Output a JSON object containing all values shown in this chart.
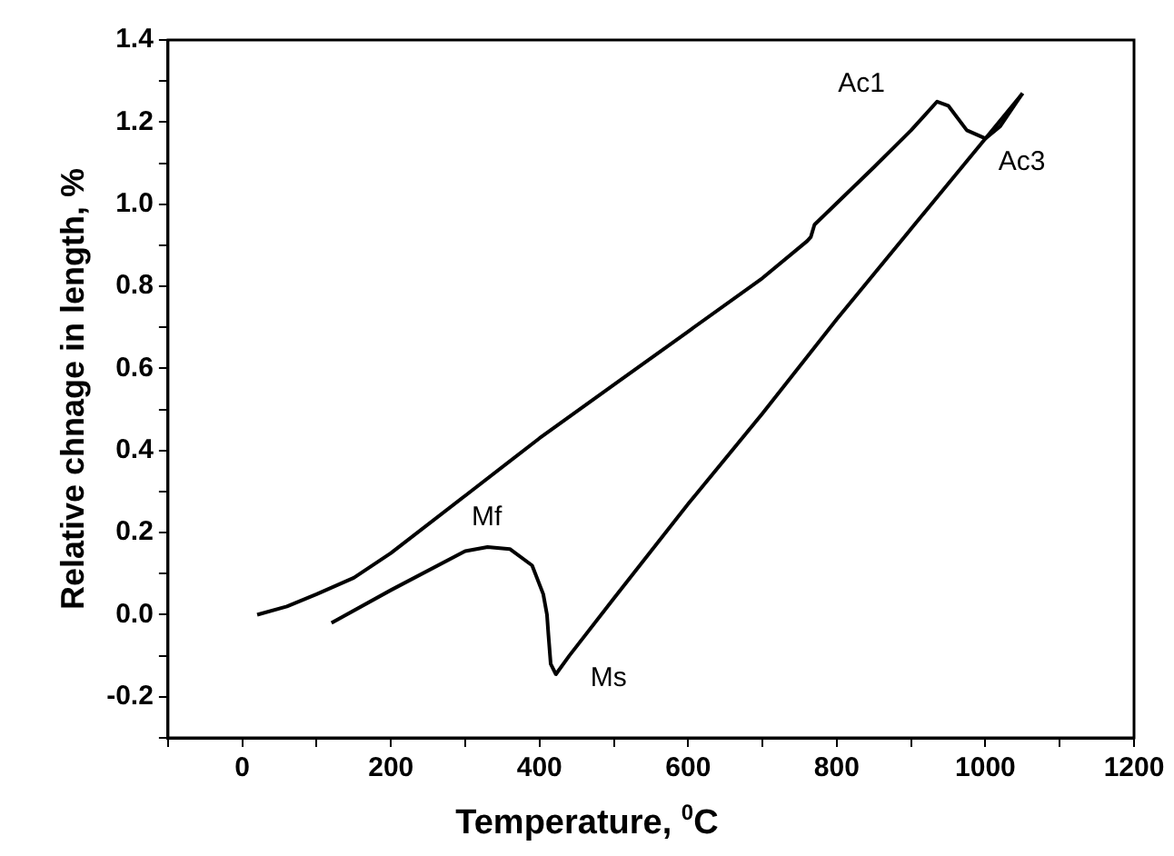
{
  "chart_data": {
    "type": "line",
    "xlabel": "Temperature, $^{0}$C",
    "ylabel": "Relative chnage in length, %",
    "series": [
      {
        "color": "#000000",
        "x": [
          20,
          60,
          100,
          150,
          200,
          300,
          400,
          500,
          600,
          700,
          760,
          765,
          770,
          850,
          900,
          935,
          950,
          975,
          1000,
          1020,
          1050
        ],
        "values": [
          0,
          0.02,
          0.05,
          0.09,
          0.15,
          0.29,
          0.43,
          0.56,
          0.69,
          0.82,
          0.91,
          0.92,
          0.95,
          1.09,
          1.18,
          1.25,
          1.24,
          1.18,
          1.16,
          1.19,
          1.27
        ]
      },
      {
        "color": "#000000",
        "x": [
          1050,
          1000,
          900,
          800,
          700,
          600,
          500,
          440,
          422,
          415,
          412,
          410,
          405,
          390,
          360,
          330,
          300,
          200,
          120
        ],
        "values": [
          1.27,
          1.16,
          0.94,
          0.72,
          0.49,
          0.27,
          0.04,
          -0.1,
          -0.145,
          -0.12,
          -0.05,
          0,
          0.05,
          0.12,
          0.16,
          0.165,
          0.155,
          0.06,
          -0.02
        ]
      }
    ],
    "xlim": [
      -100,
      1200
    ],
    "xticks": [
      {
        "value": -100,
        "label": null
      },
      0,
      {
        "value": 100,
        "label": null
      },
      200,
      {
        "value": 300,
        "label": null
      },
      400,
      {
        "value": 500,
        "label": null
      },
      600,
      {
        "value": 700,
        "label": null
      },
      800,
      {
        "value": 900,
        "label": null
      },
      1000,
      {
        "value": 1100,
        "label": null
      },
      1200
    ],
    "ylim": [
      -0.3,
      1.4
    ],
    "yticks": [
      {
        "value": -0.3,
        "label": null
      },
      {
        "value": -0.2,
        "label": "-0.2"
      },
      {
        "value": -0.1,
        "label": null
      },
      {
        "value": 0,
        "label": "0.0"
      },
      {
        "value": 0.1,
        "label": null
      },
      {
        "value": 0.2,
        "label": "0.2"
      },
      {
        "value": 0.3,
        "label": null
      },
      {
        "value": 0.4,
        "label": "0.4"
      },
      {
        "value": 0.5,
        "label": null
      },
      {
        "value": 0.6,
        "label": "0.6"
      },
      {
        "value": 0.7,
        "label": null
      },
      {
        "value": 0.8,
        "label": "0.8"
      },
      {
        "value": 0.9,
        "label": null
      },
      {
        "value": 1.0,
        "label": "1.0"
      },
      {
        "value": 1.1,
        "label": null
      },
      {
        "value": 1.2,
        "label": "1.2"
      },
      {
        "value": 1.3,
        "label": null
      },
      {
        "value": 1.4,
        "label": "1.4"
      }
    ],
    "annotations": [
      "Ac1",
      "Ac3",
      "Mf",
      "Ms"
    ],
    "grid": false,
    "legend": false,
    "marker": "none",
    "line_style": "solid"
  }
}
